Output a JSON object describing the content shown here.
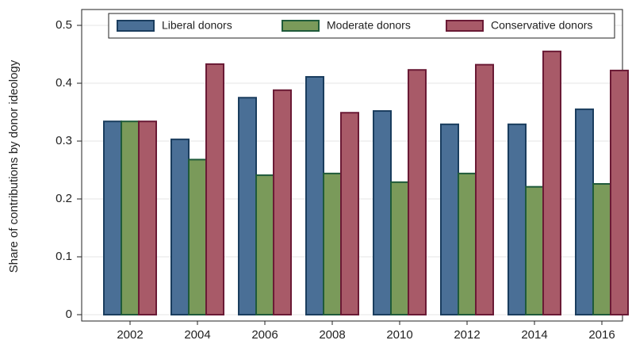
{
  "chart_data": {
    "type": "bar",
    "y_label": "Share of contributions by donor ideology",
    "categories": [
      "2002",
      "2004",
      "2006",
      "2008",
      "2010",
      "2012",
      "2014",
      "2016"
    ],
    "series": [
      {
        "name": "Liberal donors",
        "color": "#4a6f96",
        "stroke": "#1a3d5e",
        "values": [
          0.334,
          0.303,
          0.375,
          0.411,
          0.352,
          0.329,
          0.329,
          0.355
        ]
      },
      {
        "name": "Moderate donors",
        "color": "#7a9a5a",
        "stroke": "#1f5a3a",
        "values": [
          0.334,
          0.268,
          0.241,
          0.244,
          0.229,
          0.244,
          0.221,
          0.226
        ]
      },
      {
        "name": "Conservative donors",
        "color": "#a85a68",
        "stroke": "#6a1a35",
        "values": [
          0.334,
          0.433,
          0.388,
          0.349,
          0.423,
          0.432,
          0.455,
          0.422
        ]
      }
    ],
    "ylim": [
      0,
      0.5
    ],
    "yticks": [
      0,
      0.1,
      0.2,
      0.3,
      0.4,
      0.5
    ],
    "grid": true
  }
}
